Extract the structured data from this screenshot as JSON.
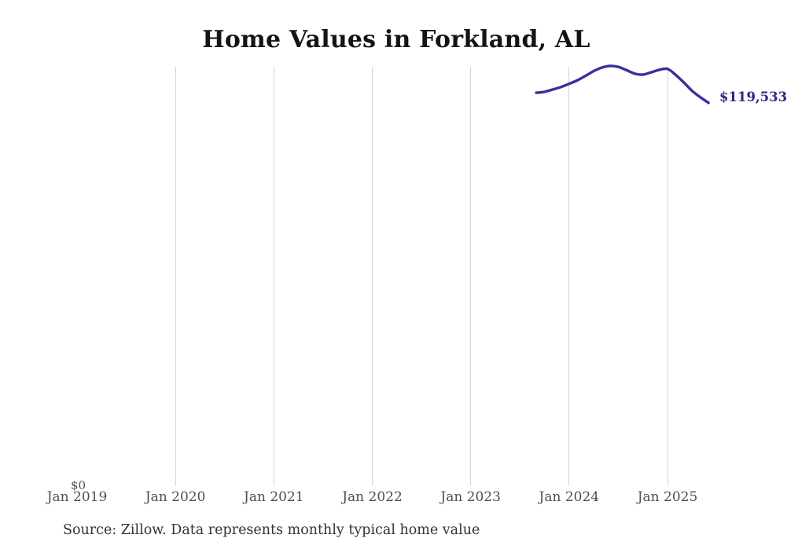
{
  "title": "Home Values in Forkland, AL",
  "y_axis": {
    "zero_label": "$0"
  },
  "x_axis": {
    "tick_labels": [
      "Jan 2019",
      "Jan 2020",
      "Jan 2021",
      "Jan 2022",
      "Jan 2023",
      "Jan 2024",
      "Jan 2025"
    ]
  },
  "end_label": "$119,533",
  "source_note": "Source: Zillow. Data represents monthly typical home value",
  "colors": {
    "line": "#37329e",
    "end_label": "#2b2884",
    "grid": "#d4d4d4",
    "axis_text": "#4f4f4f",
    "title_text": "#141414",
    "source_text": "#333333"
  },
  "chart_data": {
    "type": "line",
    "title": "Home Values in Forkland, AL",
    "xlabel": "",
    "ylabel": "",
    "ylim": [
      0,
      131100
    ],
    "grid": "vertical-only",
    "legend": "none",
    "x": [
      "Sep 2023",
      "Oct 2023",
      "Nov 2023",
      "Dec 2023",
      "Jan 2024",
      "Feb 2024",
      "Mar 2024",
      "Apr 2024",
      "May 2024",
      "Jun 2024",
      "Jul 2024",
      "Aug 2024",
      "Sep 2024",
      "Oct 2024",
      "Nov 2024",
      "Dec 2024",
      "Jan 2025",
      "Feb 2025",
      "Mar 2025",
      "Apr 2025",
      "May 2025",
      "Jun 2025"
    ],
    "values": [
      122700,
      123000,
      123700,
      124500,
      125500,
      126600,
      128000,
      129500,
      130600,
      131100,
      130800,
      129800,
      128700,
      128400,
      129100,
      129900,
      130200,
      128300,
      125900,
      123300,
      121300,
      119533
    ],
    "end_value": 119533,
    "end_value_label": "$119,533",
    "series_name": "Typical home value"
  }
}
